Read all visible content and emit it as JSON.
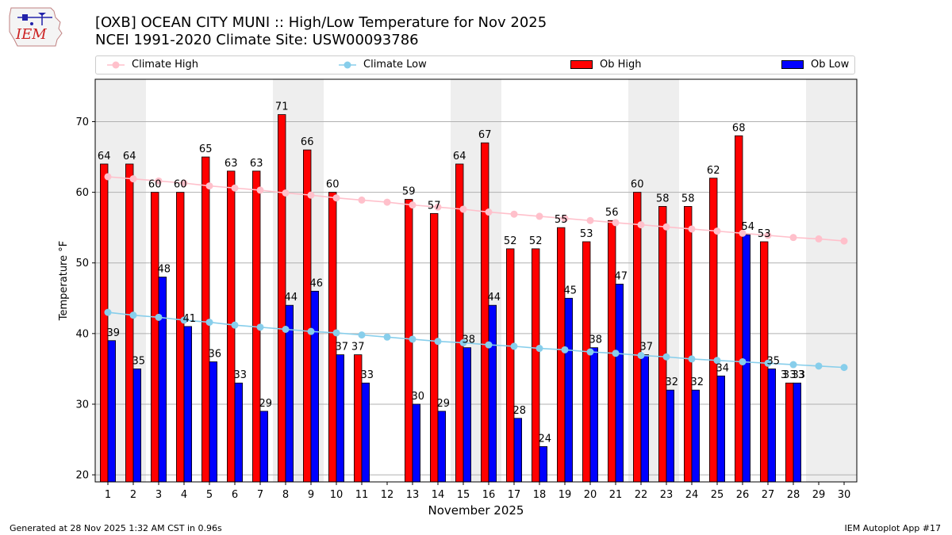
{
  "header": {
    "title_line1": "[OXB] OCEAN CITY MUNI :: High/Low Temperature for Nov 2025",
    "title_line2": "NCEI 1991-2020 Climate Site: USW00093786",
    "logo_text": "IEM"
  },
  "legend": {
    "climate_high": "Climate High",
    "climate_low": "Climate Low",
    "ob_high": "Ob High",
    "ob_low": "Ob Low"
  },
  "colors": {
    "climate_high": "#ffc0cb",
    "climate_low": "#87ceeb",
    "ob_high": "#ff0000",
    "ob_low": "#0000ff",
    "weekend_shade": "#eeeeee",
    "grid": "#b0b0b0"
  },
  "chart_data": {
    "type": "bar",
    "xlabel": "November 2025",
    "ylabel": "Temperature °F",
    "ylim": [
      19,
      76
    ],
    "yticks": [
      20,
      30,
      40,
      50,
      60,
      70
    ],
    "grid": true,
    "legend_position": "top",
    "categories": [
      "1",
      "2",
      "3",
      "4",
      "5",
      "6",
      "7",
      "8",
      "9",
      "10",
      "11",
      "12",
      "13",
      "14",
      "15",
      "16",
      "17",
      "18",
      "19",
      "20",
      "21",
      "22",
      "23",
      "24",
      "25",
      "26",
      "27",
      "28",
      "29",
      "30"
    ],
    "weekend_days": [
      1,
      2,
      8,
      9,
      15,
      16,
      22,
      23,
      29,
      30
    ],
    "series": [
      {
        "name": "Ob High",
        "kind": "bar",
        "values": [
          64,
          64,
          60,
          60,
          65,
          63,
          63,
          71,
          66,
          60,
          37,
          null,
          59,
          57,
          64,
          67,
          52,
          52,
          55,
          53,
          56,
          60,
          58,
          58,
          62,
          68,
          53,
          33,
          null,
          null
        ]
      },
      {
        "name": "Ob Low",
        "kind": "bar",
        "values": [
          39,
          35,
          48,
          41,
          36,
          33,
          29,
          44,
          46,
          37,
          33,
          null,
          30,
          29,
          38,
          44,
          28,
          24,
          45,
          38,
          47,
          37,
          32,
          32,
          34,
          54,
          35,
          33,
          null,
          null
        ]
      },
      {
        "name": "Climate High",
        "kind": "line",
        "values": [
          62.2,
          61.9,
          61.6,
          61.3,
          60.9,
          60.6,
          60.3,
          59.9,
          59.6,
          59.2,
          58.9,
          58.6,
          58.2,
          57.9,
          57.6,
          57.2,
          56.9,
          56.6,
          56.3,
          56.0,
          55.7,
          55.4,
          55.1,
          54.8,
          54.5,
          54.2,
          53.9,
          53.6,
          53.4,
          53.1
        ]
      },
      {
        "name": "Climate Low",
        "kind": "line",
        "values": [
          43.0,
          42.6,
          42.3,
          41.9,
          41.6,
          41.2,
          40.9,
          40.6,
          40.3,
          40.1,
          39.8,
          39.5,
          39.2,
          38.9,
          38.7,
          38.4,
          38.2,
          37.9,
          37.7,
          37.4,
          37.2,
          36.9,
          36.7,
          36.4,
          36.2,
          36.0,
          35.8,
          35.6,
          35.4,
          35.2
        ]
      }
    ],
    "annotations": [
      "3",
      "3"
    ]
  },
  "footer": {
    "left": "Generated at 28 Nov 2025 1:32 AM CST in 0.96s",
    "right": "IEM Autoplot App #17"
  }
}
